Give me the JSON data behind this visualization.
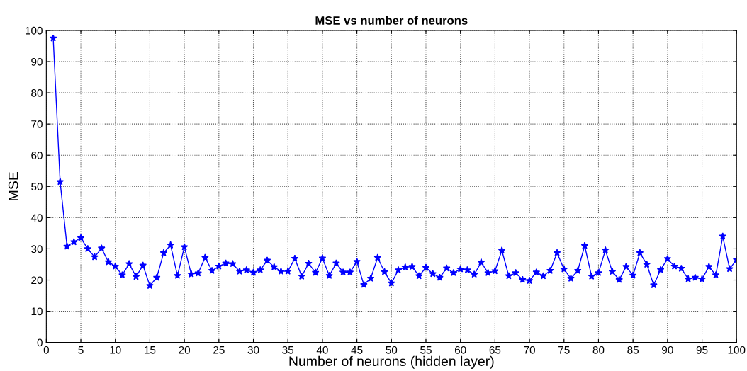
{
  "chart_data": {
    "type": "line",
    "title": "MSE vs number of neurons",
    "xlabel": "Number of neurons (hidden layer)",
    "ylabel": "MSE",
    "x": [
      1,
      2,
      3,
      4,
      5,
      6,
      7,
      8,
      9,
      10,
      11,
      12,
      13,
      14,
      15,
      16,
      17,
      18,
      19,
      20,
      21,
      22,
      23,
      24,
      25,
      26,
      27,
      28,
      29,
      30,
      31,
      32,
      33,
      34,
      35,
      36,
      37,
      38,
      39,
      40,
      41,
      42,
      43,
      44,
      45,
      46,
      47,
      48,
      49,
      50,
      51,
      52,
      53,
      54,
      55,
      56,
      57,
      58,
      59,
      60,
      61,
      62,
      63,
      64,
      65,
      66,
      67,
      68,
      69,
      70,
      71,
      72,
      73,
      74,
      75,
      76,
      77,
      78,
      79,
      80,
      81,
      82,
      83,
      84,
      85,
      86,
      87,
      88,
      89,
      90,
      91,
      92,
      93,
      94,
      95,
      96,
      97,
      98,
      99,
      100
    ],
    "series": [
      {
        "color": "#0000ff",
        "values": [
          97.5,
          51.5,
          30.8,
          32.2,
          33.5,
          30,
          27.4,
          30.2,
          25.8,
          24.4,
          21.6,
          25.2,
          21.1,
          24.7,
          18.2,
          20.8,
          28.7,
          31.2,
          21.4,
          30.6,
          21.9,
          22.2,
          27.2,
          23,
          24.4,
          25.4,
          25.2,
          22.8,
          23.2,
          22.4,
          23.2,
          26.3,
          24.2,
          22.8,
          22.8,
          26.9,
          21.2,
          25.3,
          22.4,
          27,
          21.4,
          25.4,
          22.5,
          22.5,
          25.9,
          18.5,
          20.5,
          27.2,
          22.6,
          19,
          23.2,
          24.1,
          24.3,
          21.3,
          24,
          22,
          20.8,
          23.8,
          22.3,
          23.5,
          23.2,
          21.8,
          25.7,
          22.3,
          22.9,
          29.5,
          21.3,
          22.3,
          20.1,
          19.8,
          22.5,
          21.3,
          23,
          28.7,
          23.5,
          20.5,
          23,
          31,
          21.2,
          22.3,
          29.6,
          22.7,
          20.1,
          24.3,
          21.5,
          28.7,
          25,
          18.4,
          23.3,
          26.8,
          24.4,
          23.7,
          20.3,
          20.8,
          20.3,
          24.3,
          21.6,
          34,
          23.6,
          26.5
        ]
      }
    ],
    "xlim": [
      0,
      100
    ],
    "xticks": [
      0,
      5,
      10,
      15,
      20,
      25,
      30,
      35,
      40,
      45,
      50,
      55,
      60,
      65,
      70,
      75,
      80,
      85,
      90,
      95,
      100
    ],
    "ylim": [
      0,
      100
    ],
    "yticks": [
      0,
      10,
      20,
      30,
      40,
      50,
      60,
      70,
      80,
      90,
      100
    ],
    "grid": true,
    "marker": "star",
    "line_style": "solid"
  }
}
